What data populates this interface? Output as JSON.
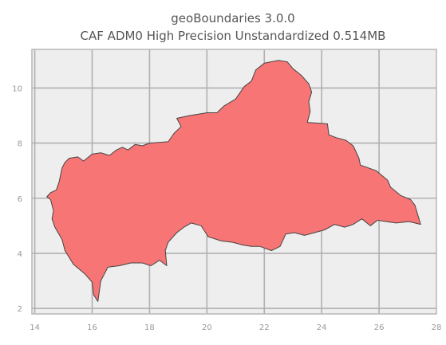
{
  "title": {
    "line1": "geoBoundaries 3.0.0",
    "line2": "CAF ADM0 High Precision Unstandardized 0.514MB"
  },
  "colors": {
    "figure_background": "#ffffff",
    "axes_background": "#eeeeee",
    "grid": "#b0b0b0",
    "shape_fill": "#f87575",
    "shape_edge": "#444444",
    "tick_text": "#999999",
    "title_text": "#555555"
  },
  "map": {
    "crs_units": "degrees",
    "grid": true,
    "xlim": [
      13.9,
      28.0
    ],
    "ylim": [
      1.8,
      11.4
    ],
    "x_ticks": [
      14,
      16,
      18,
      20,
      22,
      24,
      26,
      28
    ],
    "y_ticks": [
      2,
      4,
      6,
      8,
      10
    ],
    "outline": [
      [
        14.42,
        6.05
      ],
      [
        14.55,
        6.2
      ],
      [
        14.75,
        6.3
      ],
      [
        14.85,
        6.6
      ],
      [
        14.95,
        7.1
      ],
      [
        15.05,
        7.3
      ],
      [
        15.2,
        7.45
      ],
      [
        15.5,
        7.5
      ],
      [
        15.7,
        7.35
      ],
      [
        16.0,
        7.6
      ],
      [
        16.3,
        7.65
      ],
      [
        16.6,
        7.55
      ],
      [
        16.85,
        7.75
      ],
      [
        17.05,
        7.85
      ],
      [
        17.25,
        7.75
      ],
      [
        17.5,
        7.95
      ],
      [
        17.75,
        7.9
      ],
      [
        18.0,
        8.0
      ],
      [
        18.65,
        8.05
      ],
      [
        18.85,
        8.35
      ],
      [
        19.1,
        8.6
      ],
      [
        18.95,
        8.9
      ],
      [
        19.4,
        9.0
      ],
      [
        20.0,
        9.1
      ],
      [
        20.35,
        9.1
      ],
      [
        20.6,
        9.35
      ],
      [
        21.0,
        9.6
      ],
      [
        21.3,
        10.05
      ],
      [
        21.55,
        10.25
      ],
      [
        21.7,
        10.65
      ],
      [
        22.0,
        10.9
      ],
      [
        22.5,
        11.0
      ],
      [
        22.8,
        10.95
      ],
      [
        23.0,
        10.7
      ],
      [
        23.3,
        10.45
      ],
      [
        23.55,
        10.15
      ],
      [
        23.65,
        9.85
      ],
      [
        23.55,
        9.5
      ],
      [
        23.6,
        9.15
      ],
      [
        23.5,
        8.75
      ],
      [
        24.2,
        8.7
      ],
      [
        24.25,
        8.3
      ],
      [
        24.5,
        8.2
      ],
      [
        24.85,
        8.1
      ],
      [
        25.1,
        7.9
      ],
      [
        25.3,
        7.45
      ],
      [
        25.35,
        7.2
      ],
      [
        25.9,
        7.0
      ],
      [
        26.3,
        6.65
      ],
      [
        26.4,
        6.4
      ],
      [
        26.75,
        6.1
      ],
      [
        27.1,
        5.95
      ],
      [
        27.25,
        5.75
      ],
      [
        27.35,
        5.4
      ],
      [
        27.45,
        5.05
      ],
      [
        27.05,
        5.15
      ],
      [
        26.6,
        5.1
      ],
      [
        26.25,
        5.15
      ],
      [
        25.95,
        5.2
      ],
      [
        25.7,
        5.0
      ],
      [
        25.4,
        5.25
      ],
      [
        25.1,
        5.05
      ],
      [
        24.8,
        4.95
      ],
      [
        24.45,
        5.05
      ],
      [
        24.1,
        4.85
      ],
      [
        23.75,
        4.75
      ],
      [
        23.4,
        4.65
      ],
      [
        23.05,
        4.75
      ],
      [
        22.75,
        4.7
      ],
      [
        22.55,
        4.25
      ],
      [
        22.25,
        4.1
      ],
      [
        21.85,
        4.25
      ],
      [
        21.55,
        4.25
      ],
      [
        21.25,
        4.3
      ],
      [
        20.9,
        4.4
      ],
      [
        20.5,
        4.45
      ],
      [
        20.05,
        4.6
      ],
      [
        19.8,
        5.0
      ],
      [
        19.45,
        5.1
      ],
      [
        19.2,
        4.95
      ],
      [
        18.95,
        4.75
      ],
      [
        18.65,
        4.4
      ],
      [
        18.55,
        4.1
      ],
      [
        18.6,
        3.55
      ],
      [
        18.35,
        3.75
      ],
      [
        18.05,
        3.55
      ],
      [
        17.75,
        3.65
      ],
      [
        17.35,
        3.65
      ],
      [
        16.95,
        3.55
      ],
      [
        16.55,
        3.5
      ],
      [
        16.3,
        3.0
      ],
      [
        16.2,
        2.25
      ],
      [
        16.05,
        2.5
      ],
      [
        16.0,
        2.95
      ],
      [
        15.75,
        3.25
      ],
      [
        15.35,
        3.6
      ],
      [
        15.05,
        4.1
      ],
      [
        14.95,
        4.5
      ],
      [
        14.7,
        4.95
      ],
      [
        14.6,
        5.25
      ],
      [
        14.65,
        5.55
      ],
      [
        14.55,
        5.95
      ],
      [
        14.42,
        6.05
      ]
    ]
  }
}
